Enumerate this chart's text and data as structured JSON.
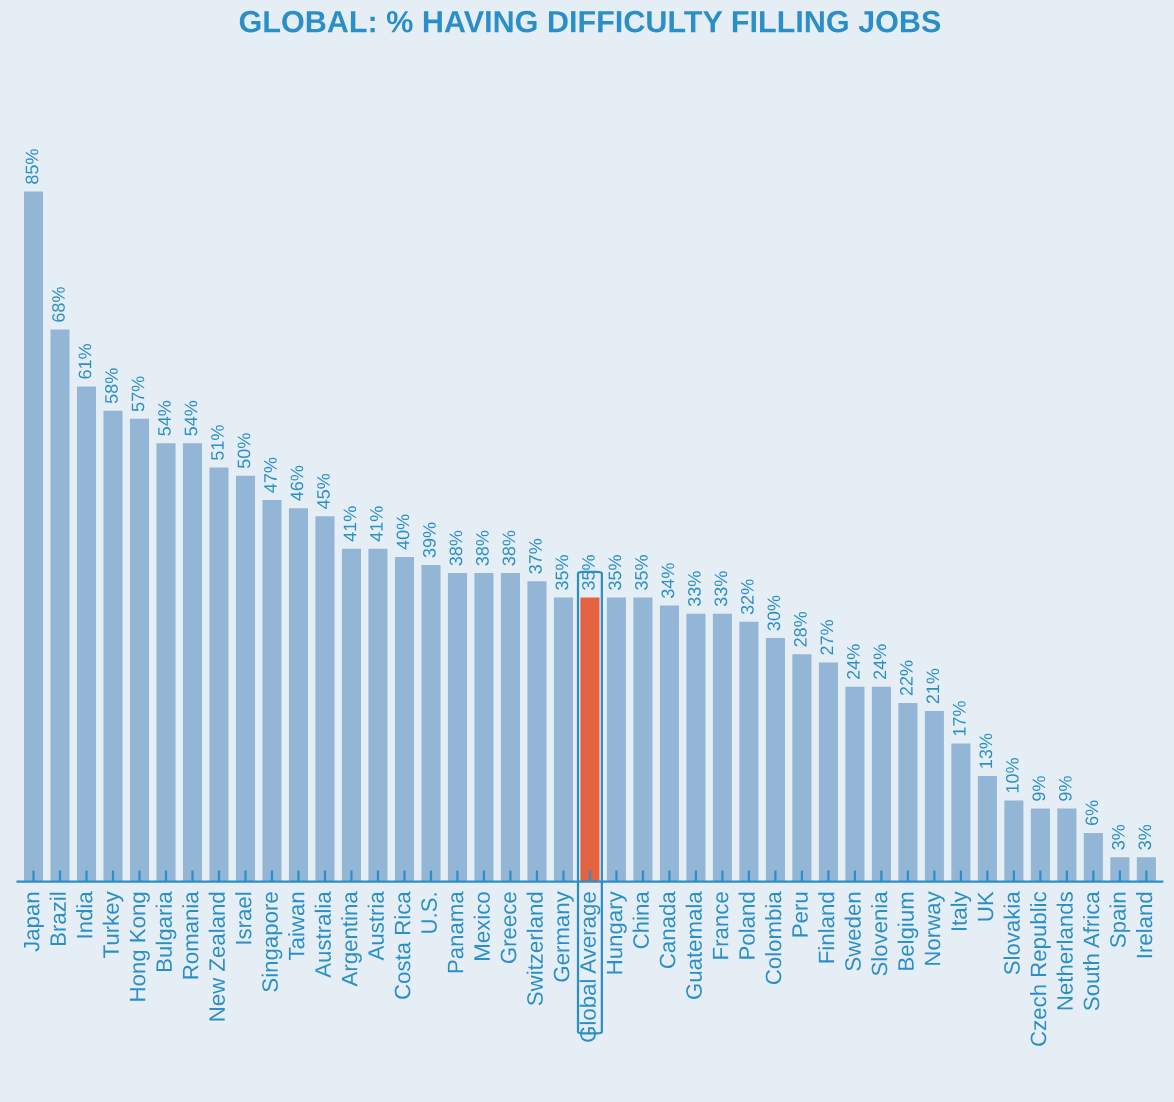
{
  "chart_data": {
    "type": "bar",
    "title": "GLOBAL: % HAVING DIFFICULTY FILLING JOBS",
    "categories": [
      "Japan",
      "Brazil",
      "India",
      "Turkey",
      "Hong Kong",
      "Bulgaria",
      "Romania",
      "New Zealand",
      "Israel",
      "Singapore",
      "Taiwan",
      "Australia",
      "Argentina",
      "Austria",
      "Costa Rica",
      "U.S.",
      "Panama",
      "Mexico",
      "Greece",
      "Switzerland",
      "Germany",
      "Global Average",
      "Hungary",
      "China",
      "Canada",
      "Guatemala",
      "France",
      "Poland",
      "Colombia",
      "Peru",
      "Finland",
      "Sweden",
      "Slovenia",
      "Belgium",
      "Norway",
      "Italy",
      "UK",
      "Slovakia",
      "Czech Republic",
      "Netherlands",
      "South Africa",
      "Spain",
      "Ireland"
    ],
    "values": [
      85,
      68,
      61,
      58,
      57,
      54,
      54,
      51,
      50,
      47,
      46,
      45,
      41,
      41,
      40,
      39,
      38,
      38,
      38,
      37,
      35,
      35,
      35,
      35,
      34,
      33,
      33,
      32,
      30,
      28,
      27,
      24,
      24,
      22,
      21,
      17,
      13,
      10,
      9,
      9,
      6,
      3,
      3
    ],
    "colors": [
      "#93b5d6",
      "#93b5d6",
      "#93b5d6",
      "#93b5d6",
      "#93b5d6",
      "#93b5d6",
      "#93b5d6",
      "#93b5d6",
      "#93b5d6",
      "#93b5d6",
      "#93b5d6",
      "#93b5d6",
      "#93b5d6",
      "#93b5d6",
      "#93b5d6",
      "#93b5d6",
      "#93b5d6",
      "#93b5d6",
      "#93b5d6",
      "#93b5d6",
      "#93b5d6",
      "#e3623f",
      "#93b5d6",
      "#93b5d6",
      "#93b5d6",
      "#93b5d6",
      "#93b5d6",
      "#93b5d6",
      "#93b5d6",
      "#93b5d6",
      "#93b5d6",
      "#93b5d6",
      "#93b5d6",
      "#93b5d6",
      "#93b5d6",
      "#93b5d6",
      "#93b5d6",
      "#93b5d6",
      "#93b5d6",
      "#93b5d6",
      "#93b5d6",
      "#93b5d6",
      "#93b5d6"
    ],
    "value_labels": [
      "85%",
      "68%",
      "61%",
      "58%",
      "57%",
      "54%",
      "54%",
      "51%",
      "50%",
      "47%",
      "46%",
      "45%",
      "41%",
      "41%",
      "40%",
      "39%",
      "38%",
      "38%",
      "38%",
      "37%",
      "35%",
      "35%",
      "35%",
      "35%",
      "34%",
      "33%",
      "33%",
      "32%",
      "30%",
      "28%",
      "27%",
      "24%",
      "24%",
      "22%",
      "21%",
      "17%",
      "13%",
      "10%",
      "9%",
      "9%",
      "6%",
      "3%",
      "3%"
    ],
    "grid": false,
    "legend": false
  }
}
